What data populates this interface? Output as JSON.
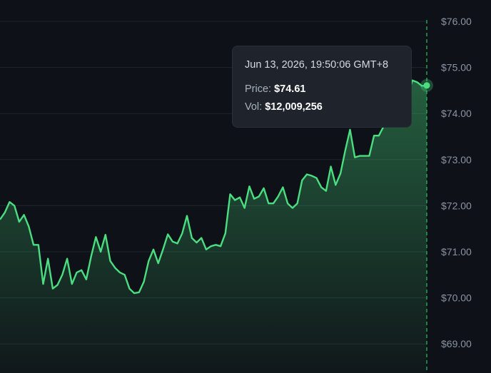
{
  "chart_data": {
    "type": "area",
    "y_ticks": [
      "$76.00",
      "$75.00",
      "$74.00",
      "$73.00",
      "$72.00",
      "$71.00",
      "$70.00",
      "$69.00"
    ],
    "ylim": [
      68.45,
      76.45
    ],
    "grid": true,
    "series": [
      {
        "color": "#4ade80",
        "values": [
          71.7,
          71.85,
          72.08,
          72.0,
          71.65,
          71.8,
          71.55,
          71.15,
          71.15,
          70.3,
          70.85,
          70.2,
          70.28,
          70.5,
          70.85,
          70.3,
          70.55,
          70.6,
          70.4,
          70.9,
          71.32,
          71.0,
          71.37,
          70.8,
          70.65,
          70.55,
          70.5,
          70.2,
          70.1,
          70.12,
          70.35,
          70.8,
          71.05,
          70.75,
          71.05,
          71.38,
          71.22,
          71.18,
          71.4,
          71.78,
          71.3,
          71.2,
          71.3,
          71.05,
          71.12,
          71.15,
          71.12,
          71.4,
          72.25,
          72.12,
          72.18,
          71.95,
          72.42,
          72.15,
          72.2,
          72.38,
          72.05,
          72.05,
          72.2,
          72.4,
          72.05,
          71.95,
          72.05,
          72.55,
          72.68,
          72.65,
          72.6,
          72.4,
          72.32,
          72.85,
          72.45,
          72.7,
          73.2,
          73.65,
          73.05,
          73.08,
          73.08,
          73.08,
          73.52,
          73.52,
          73.72,
          73.98,
          74.25,
          74.45,
          74.55,
          74.38,
          74.72,
          74.68,
          74.6,
          74.61
        ]
      }
    ],
    "cursor": {
      "time": "Jun 13, 2026, 19:50:06 GMT+8",
      "price_label": "Price:",
      "price": "$74.61",
      "vol_label": "Vol:",
      "vol": "$12,009,256"
    }
  },
  "colors": {
    "background": "#0e1117",
    "grid": "#1f252d",
    "line": "#4ade80",
    "crosshair": "#22c55e",
    "tooltip_bg": "#1e232c"
  }
}
